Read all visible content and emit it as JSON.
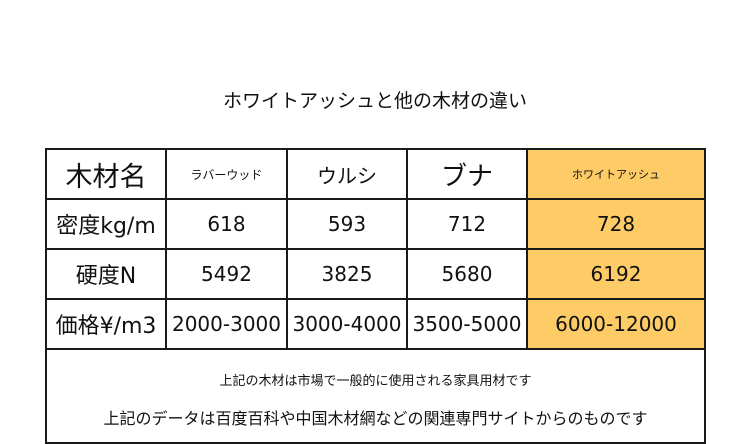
{
  "title": "ホワイトアッシュと他の木材の違い",
  "table": {
    "header": {
      "label": "木材名",
      "cols": [
        "ラバーウッド",
        "ウルシ",
        "ブナ",
        "ホワイトアッシュ"
      ]
    },
    "rows": [
      {
        "label": "密度kg/m",
        "values": [
          "618",
          "593",
          "712",
          "728"
        ]
      },
      {
        "label": "硬度N",
        "values": [
          "5492",
          "3825",
          "5680",
          "6192"
        ]
      },
      {
        "label": "価格¥/m3",
        "values": [
          "2000-3000",
          "3000-4000",
          "3500-5000",
          "6000-12000"
        ]
      }
    ],
    "notes": [
      "上記の木材は市場で一般的に使用される家具用材です",
      "上記のデータは百度百科や中国木材網などの関連専門サイトからのものです"
    ]
  },
  "colors": {
    "highlight": "#fecc67",
    "border": "#1a1a1a"
  }
}
